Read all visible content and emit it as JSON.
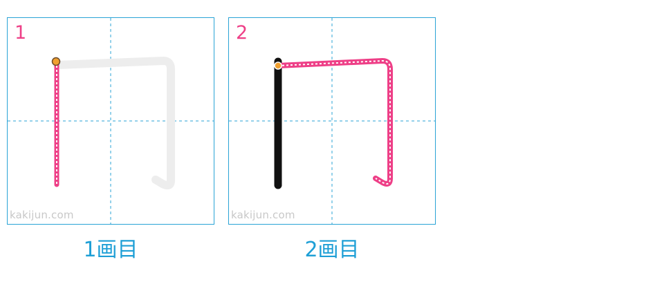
{
  "colors": {
    "grid_border": "#29a3d6",
    "current_stroke": "#ee3f87",
    "done_stroke": "#111111",
    "pending_stroke": "#ededed",
    "start_dot": "#f0a030",
    "caption": "#1e9fd6"
  },
  "panels": [
    {
      "number": "1",
      "watermark": "kakijun.com",
      "caption": "1画目"
    },
    {
      "number": "2",
      "watermark": "kakijun.com",
      "caption": "2画目"
    }
  ]
}
